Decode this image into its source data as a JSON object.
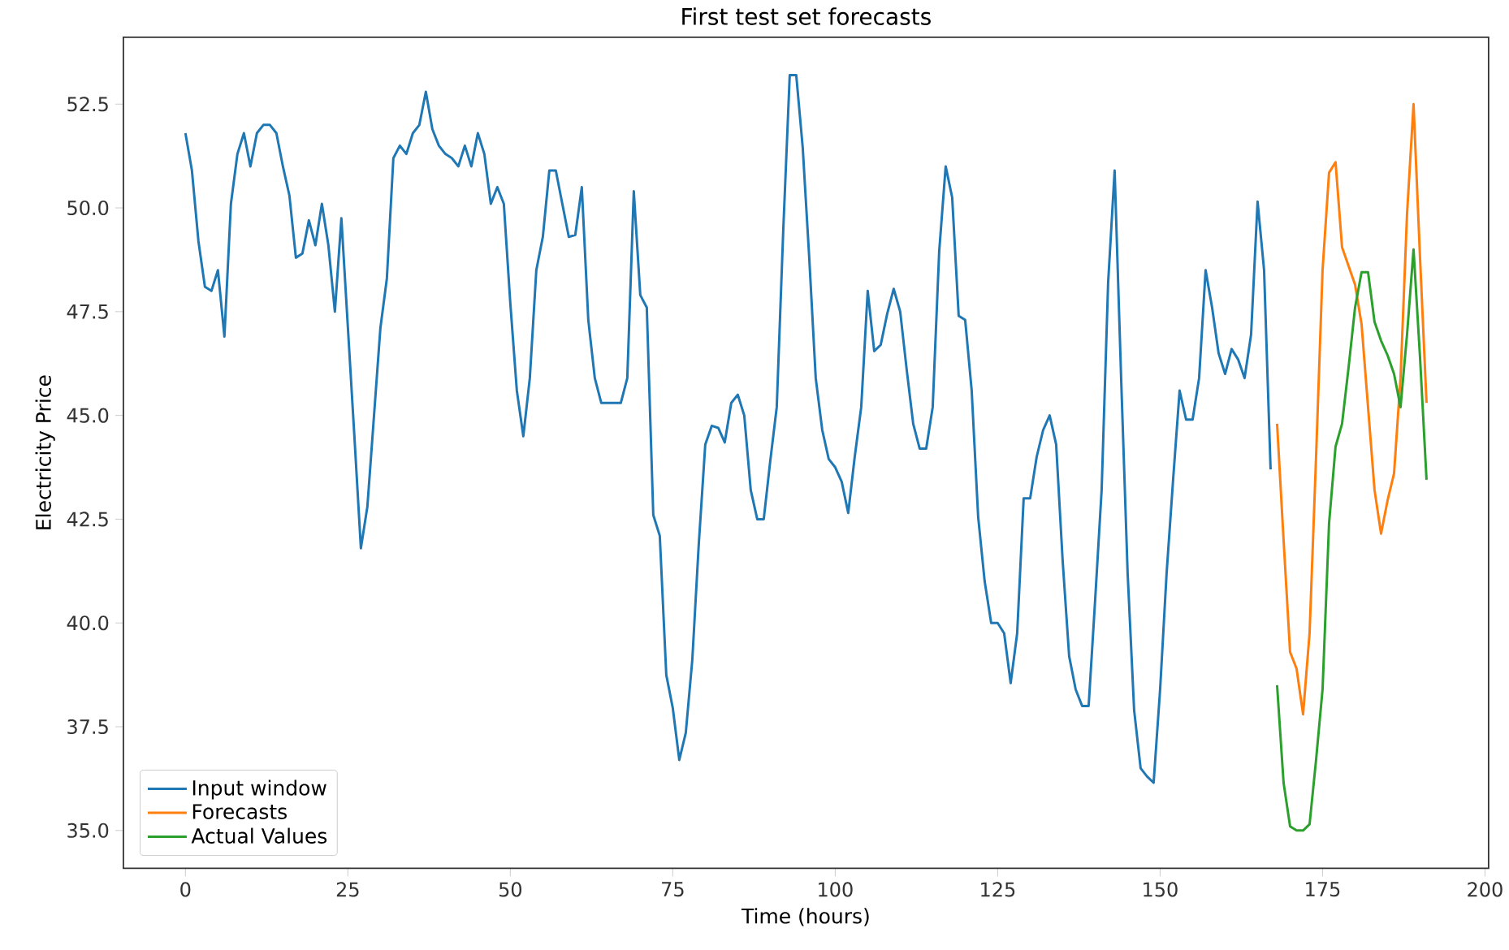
{
  "chart_data": {
    "type": "line",
    "title": "First test set forecasts",
    "xlabel": "Time (hours)",
    "ylabel": "Electricity Price",
    "xlim": [
      -9.55,
      200.55
    ],
    "ylim": [
      34.09,
      54.11
    ],
    "xticks": [
      0,
      25,
      50,
      75,
      100,
      125,
      150,
      175,
      200
    ],
    "yticks": [
      {
        "value": 35,
        "label": "35.0"
      },
      {
        "value": 37.5,
        "label": "37.5"
      },
      {
        "value": 40,
        "label": "40.0"
      },
      {
        "value": 42.5,
        "label": "42.5"
      },
      {
        "value": 45,
        "label": "45.0"
      },
      {
        "value": 47.5,
        "label": "47.5"
      },
      {
        "value": 50,
        "label": "50.0"
      },
      {
        "value": 52.5,
        "label": "52.5"
      }
    ],
    "grid": false,
    "legend": "bottom left",
    "marker": "none",
    "line_style": "solid",
    "series": [
      {
        "name": "Input window",
        "color": "#1f77b4",
        "x": [
          0,
          1,
          2,
          3,
          4,
          5,
          6,
          7,
          8,
          9,
          10,
          11,
          12,
          13,
          14,
          15,
          16,
          17,
          18,
          19,
          20,
          21,
          22,
          23,
          24,
          26,
          27,
          28,
          30,
          31,
          32,
          33,
          34,
          35,
          36,
          37,
          38,
          39,
          40,
          41,
          42,
          43,
          44,
          45,
          46,
          47,
          48,
          49,
          50,
          51,
          52,
          53,
          54,
          55,
          56,
          57,
          58,
          59,
          60,
          61,
          62,
          63,
          64,
          65,
          66,
          67,
          68,
          69,
          70,
          71,
          72,
          73,
          74,
          75,
          76,
          77,
          78,
          79,
          80,
          81,
          82,
          83,
          84,
          85,
          86,
          87,
          88,
          89,
          90,
          91,
          92,
          93,
          94,
          95,
          96,
          97,
          98,
          99,
          100,
          101,
          102,
          103,
          104,
          105,
          106,
          107,
          108,
          109,
          110,
          111,
          112,
          113,
          114,
          115,
          116,
          117,
          118,
          119,
          120,
          121,
          122,
          123,
          124,
          125,
          126,
          127,
          128,
          129,
          130,
          131,
          132,
          133,
          134,
          135,
          136,
          137,
          138,
          139,
          140,
          141,
          142,
          143,
          144,
          145,
          146,
          147,
          148,
          149,
          150,
          151,
          152,
          153,
          154,
          155,
          156,
          157,
          158,
          159,
          160,
          161,
          162,
          163,
          164,
          165,
          166,
          167
        ],
        "values": [
          51.8,
          50.9,
          49.2,
          48.1,
          48.0,
          48.5,
          46.9,
          50.1,
          51.3,
          51.8,
          51.0,
          51.8,
          52.0,
          52.0,
          51.8,
          51.0,
          50.3,
          48.8,
          48.9,
          49.7,
          49.1,
          50.1,
          49.1,
          47.5,
          49.75,
          44.5,
          41.8,
          42.8,
          47.1,
          48.3,
          51.2,
          51.5,
          51.3,
          51.8,
          52.0,
          52.8,
          51.9,
          51.5,
          51.3,
          51.2,
          51.0,
          51.5,
          51.0,
          51.8,
          51.3,
          50.1,
          50.5,
          50.1,
          47.7,
          45.6,
          44.5,
          45.9,
          48.5,
          49.3,
          50.9,
          50.9,
          50.1,
          49.3,
          49.35,
          50.5,
          47.3,
          45.9,
          45.3,
          45.3,
          45.3,
          45.3,
          45.9,
          50.4,
          47.9,
          47.6,
          42.6,
          42.1,
          38.75,
          37.95,
          36.7,
          37.35,
          39.1,
          41.9,
          44.3,
          44.75,
          44.7,
          44.35,
          45.3,
          45.5,
          45.0,
          43.2,
          42.5,
          42.5,
          43.9,
          45.2,
          49.45,
          53.2,
          53.2,
          51.45,
          48.8,
          45.9,
          44.65,
          43.95,
          43.75,
          43.4,
          42.65,
          44.0,
          45.2,
          48.0,
          46.55,
          46.7,
          47.45,
          48.05,
          47.5,
          46.1,
          44.8,
          44.2,
          44.2,
          45.2,
          48.95,
          51.0,
          50.25,
          47.4,
          47.3,
          45.6,
          42.55,
          41.0,
          40.0,
          40.0,
          39.75,
          38.55,
          39.75,
          43.0,
          43.0,
          44.0,
          44.65,
          45.0,
          44.3,
          41.5,
          39.2,
          38.4,
          38.0,
          38.0,
          40.55,
          43.2,
          48.2,
          50.9,
          45.9,
          41.2,
          37.9,
          36.5,
          36.3,
          36.15,
          38.4,
          41.2,
          43.45,
          45.6,
          44.9,
          44.9,
          45.9,
          48.5,
          47.6,
          46.5,
          46.0,
          46.6,
          46.35,
          45.9,
          46.95,
          50.15,
          48.5,
          43.7
        ]
      },
      {
        "name": "Forecasts",
        "color": "#ff7f0e",
        "x": [
          168,
          169,
          170,
          171,
          172,
          173,
          174,
          175,
          176,
          177,
          178,
          179,
          180,
          181,
          182,
          183,
          184,
          185,
          186,
          187,
          188,
          189,
          190,
          191
        ],
        "values": [
          44.8,
          42.0,
          39.3,
          38.9,
          37.8,
          39.75,
          44.0,
          48.5,
          50.85,
          51.1,
          49.05,
          48.6,
          48.15,
          47.2,
          45.2,
          43.2,
          42.15,
          42.95,
          43.6,
          45.9,
          49.85,
          52.5,
          48.8,
          45.3
        ]
      },
      {
        "name": "Actual Values",
        "color": "#2ca02c",
        "x": [
          168,
          169,
          170,
          171,
          172,
          173,
          174,
          175,
          176,
          177,
          178,
          179,
          180,
          181,
          182,
          183,
          184,
          185,
          186,
          187,
          188,
          189,
          190,
          191
        ],
        "values": [
          38.5,
          36.15,
          35.1,
          35.0,
          35.0,
          35.15,
          36.7,
          38.4,
          42.4,
          44.25,
          44.8,
          46.15,
          47.6,
          48.45,
          48.45,
          47.25,
          46.8,
          46.45,
          46.0,
          45.2,
          46.95,
          49.0,
          46.4,
          43.45
        ]
      }
    ]
  }
}
